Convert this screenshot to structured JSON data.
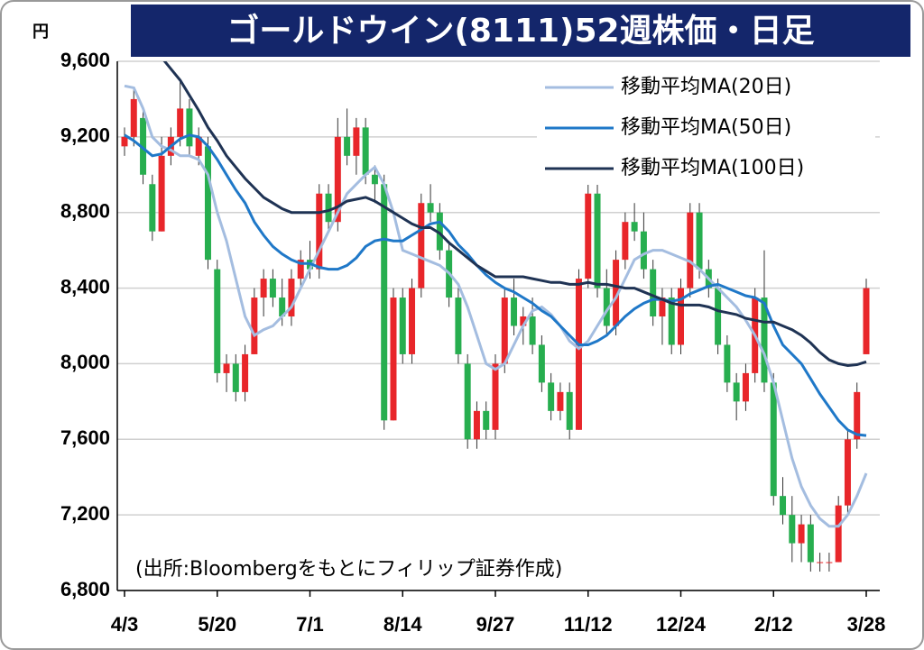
{
  "chart_data": {
    "type": "candlestick",
    "title": "ゴールドウイン(8111)52週株価・日足",
    "y_unit": "円",
    "annotation": "(出所:Bloombergをもとにフィリップ証券作成)",
    "up_color": "#e8262a",
    "down_color": "#27ae4f",
    "grid": true,
    "legend": "top-right",
    "ylim": [
      6800,
      9600
    ],
    "yticks": [
      {
        "value": 6800,
        "label": "6,800"
      },
      {
        "value": 7200,
        "label": "7,200"
      },
      {
        "value": 7600,
        "label": "7,600"
      },
      {
        "value": 8000,
        "label": "8,000"
      },
      {
        "value": 8400,
        "label": "8,400"
      },
      {
        "value": 8800,
        "label": "8,800"
      },
      {
        "value": 9200,
        "label": "9,200"
      },
      {
        "value": 9600,
        "label": "9,600"
      }
    ],
    "categories": [
      "4/3",
      null,
      null,
      null,
      null,
      null,
      null,
      null,
      null,
      null,
      "5/20",
      null,
      null,
      null,
      null,
      null,
      null,
      null,
      null,
      null,
      "7/1",
      null,
      null,
      null,
      null,
      null,
      null,
      null,
      null,
      null,
      "8/14",
      null,
      null,
      null,
      null,
      null,
      null,
      null,
      null,
      null,
      "9/27",
      null,
      null,
      null,
      null,
      null,
      null,
      null,
      null,
      null,
      "11/12",
      null,
      null,
      null,
      null,
      null,
      null,
      null,
      null,
      null,
      "12/24",
      null,
      null,
      null,
      null,
      null,
      null,
      null,
      null,
      null,
      "2/12",
      null,
      null,
      null,
      null,
      null,
      null,
      null,
      null,
      null,
      "3/28"
    ],
    "open": [
      9150,
      9200,
      9300,
      8950,
      8700,
      9100,
      9200,
      9350,
      9100,
      9150,
      8500,
      7950,
      8000,
      7850,
      8050,
      8350,
      8450,
      8350,
      8250,
      8450,
      8550,
      8500,
      8900,
      8750,
      9200,
      9100,
      9250,
      9000,
      8950,
      7700,
      8350,
      8050,
      8400,
      8850,
      8800,
      8600,
      8350,
      8000,
      7600,
      7750,
      7650,
      8000,
      8350,
      8200,
      8250,
      8100,
      7900,
      7750,
      7850,
      7650,
      8450,
      8900,
      8400,
      8200,
      8550,
      8750,
      8700,
      8500,
      8250,
      8350,
      8100,
      8400,
      8800,
      8500,
      8400,
      8100,
      7900,
      7800,
      7950,
      8350,
      7900,
      7300,
      7200,
      7050,
      7150,
      6950,
      6950,
      6950,
      7250,
      7600,
      8050
    ],
    "high": [
      9250,
      9450,
      9350,
      9000,
      9200,
      9250,
      9500,
      9400,
      9250,
      9200,
      8550,
      8050,
      8050,
      8100,
      8400,
      8500,
      8500,
      8450,
      8500,
      8600,
      8650,
      8950,
      8950,
      9300,
      9350,
      9300,
      9300,
      9050,
      9000,
      8400,
      8400,
      8450,
      8900,
      8950,
      8850,
      8650,
      8400,
      8050,
      7800,
      7800,
      8050,
      8400,
      8450,
      8300,
      8350,
      8150,
      7950,
      7900,
      7900,
      8500,
      8950,
      8950,
      8500,
      8600,
      8800,
      8850,
      8800,
      8550,
      8400,
      8400,
      8450,
      8850,
      8850,
      8550,
      8450,
      8150,
      7950,
      8000,
      8400,
      8600,
      7950,
      7400,
      7300,
      7200,
      7200,
      7000,
      7000,
      7300,
      7650,
      7900,
      8450
    ],
    "low": [
      9100,
      9150,
      8950,
      8650,
      8700,
      9050,
      9150,
      9100,
      9050,
      8500,
      7900,
      7850,
      7800,
      7800,
      8050,
      8250,
      8300,
      8200,
      8200,
      8400,
      8450,
      8450,
      8700,
      8700,
      9050,
      9000,
      8950,
      8850,
      7650,
      7700,
      8000,
      8000,
      8350,
      8750,
      8550,
      8300,
      8000,
      7550,
      7550,
      7600,
      7600,
      7950,
      8150,
      8100,
      8050,
      7850,
      7700,
      7700,
      7600,
      7650,
      8400,
      8350,
      8150,
      8150,
      8500,
      8650,
      8450,
      8200,
      8100,
      8050,
      8050,
      8350,
      8450,
      8350,
      8050,
      7850,
      7700,
      7750,
      7900,
      7850,
      7250,
      7150,
      6950,
      6950,
      6900,
      6900,
      6900,
      6950,
      7200,
      7550,
      8050
    ],
    "close": [
      9200,
      9400,
      9000,
      8700,
      9100,
      9200,
      9350,
      9150,
      9200,
      8550,
      7950,
      8000,
      7850,
      8050,
      8350,
      8450,
      8350,
      8250,
      8450,
      8550,
      8500,
      8900,
      8750,
      9200,
      9100,
      9250,
      9000,
      8950,
      7700,
      8350,
      8050,
      8400,
      8850,
      8800,
      8600,
      8350,
      8050,
      7600,
      7750,
      7650,
      8000,
      8350,
      8200,
      8250,
      8100,
      7900,
      7750,
      7850,
      7650,
      8450,
      8900,
      8400,
      8200,
      8550,
      8750,
      8700,
      8500,
      8250,
      8350,
      8100,
      8400,
      8800,
      8500,
      8400,
      8100,
      7900,
      7800,
      7950,
      8350,
      7900,
      7300,
      7200,
      7050,
      7150,
      6950,
      6950,
      6950,
      7250,
      7600,
      7850,
      8400
    ],
    "series": [
      {
        "name": "移動平均MA(20日)",
        "color": "#a4bde0",
        "values": [
          9470,
          9460,
          9350,
          9200,
          9150,
          9130,
          9100,
          9100,
          9080,
          9000,
          8800,
          8650,
          8450,
          8250,
          8150,
          8180,
          8200,
          8250,
          8300,
          8400,
          8500,
          8600,
          8700,
          8800,
          8900,
          8950,
          9000,
          9040,
          8950,
          8800,
          8600,
          8580,
          8560,
          8540,
          8520,
          8480,
          8420,
          8300,
          8150,
          8000,
          7970,
          8000,
          8100,
          8200,
          8280,
          8300,
          8260,
          8200,
          8120,
          8080,
          8120,
          8200,
          8280,
          8350,
          8450,
          8550,
          8580,
          8600,
          8600,
          8580,
          8560,
          8540,
          8500,
          8450,
          8400,
          8350,
          8300,
          8230,
          8150,
          8050,
          7900,
          7700,
          7500,
          7350,
          7250,
          7180,
          7140,
          7140,
          7200,
          7300,
          7420
        ]
      },
      {
        "name": "移動平均MA(50日)",
        "color": "#1f78c8",
        "values": [
          9210,
          9180,
          9140,
          9100,
          9110,
          9150,
          9190,
          9210,
          9200,
          9150,
          9080,
          9000,
          8920,
          8850,
          8750,
          8680,
          8620,
          8580,
          8550,
          8530,
          8530,
          8510,
          8500,
          8500,
          8520,
          8560,
          8620,
          8650,
          8660,
          8650,
          8650,
          8680,
          8710,
          8740,
          8750,
          8700,
          8630,
          8580,
          8520,
          8470,
          8430,
          8400,
          8380,
          8350,
          8320,
          8280,
          8250,
          8200,
          8150,
          8100,
          8100,
          8120,
          8150,
          8200,
          8250,
          8290,
          8320,
          8340,
          8340,
          8330,
          8340,
          8370,
          8390,
          8410,
          8420,
          8400,
          8380,
          8360,
          8350,
          8320,
          8200,
          8100,
          8050,
          8000,
          7920,
          7840,
          7770,
          7700,
          7650,
          7625,
          7620
        ]
      },
      {
        "name": "移動平均MA(100日)",
        "color": "#1f3354",
        "values": [
          null,
          null,
          null,
          null,
          9620,
          9560,
          9500,
          9420,
          9340,
          9250,
          9180,
          9100,
          9040,
          8980,
          8930,
          8880,
          8850,
          8820,
          8800,
          8800,
          8800,
          8800,
          8810,
          8830,
          8860,
          8870,
          8880,
          8860,
          8830,
          8800,
          8770,
          8740,
          8720,
          8720,
          8690,
          8640,
          8600,
          8560,
          8520,
          8490,
          8460,
          8460,
          8460,
          8460,
          8450,
          8440,
          8430,
          8430,
          8420,
          8420,
          8430,
          8420,
          8420,
          8410,
          8400,
          8400,
          8380,
          8360,
          8340,
          8320,
          8310,
          8310,
          8310,
          8300,
          8280,
          8270,
          8260,
          8240,
          8230,
          8220,
          8220,
          8200,
          8180,
          8150,
          8110,
          8060,
          8020,
          8000,
          7990,
          7995,
          8010
        ]
      }
    ]
  }
}
